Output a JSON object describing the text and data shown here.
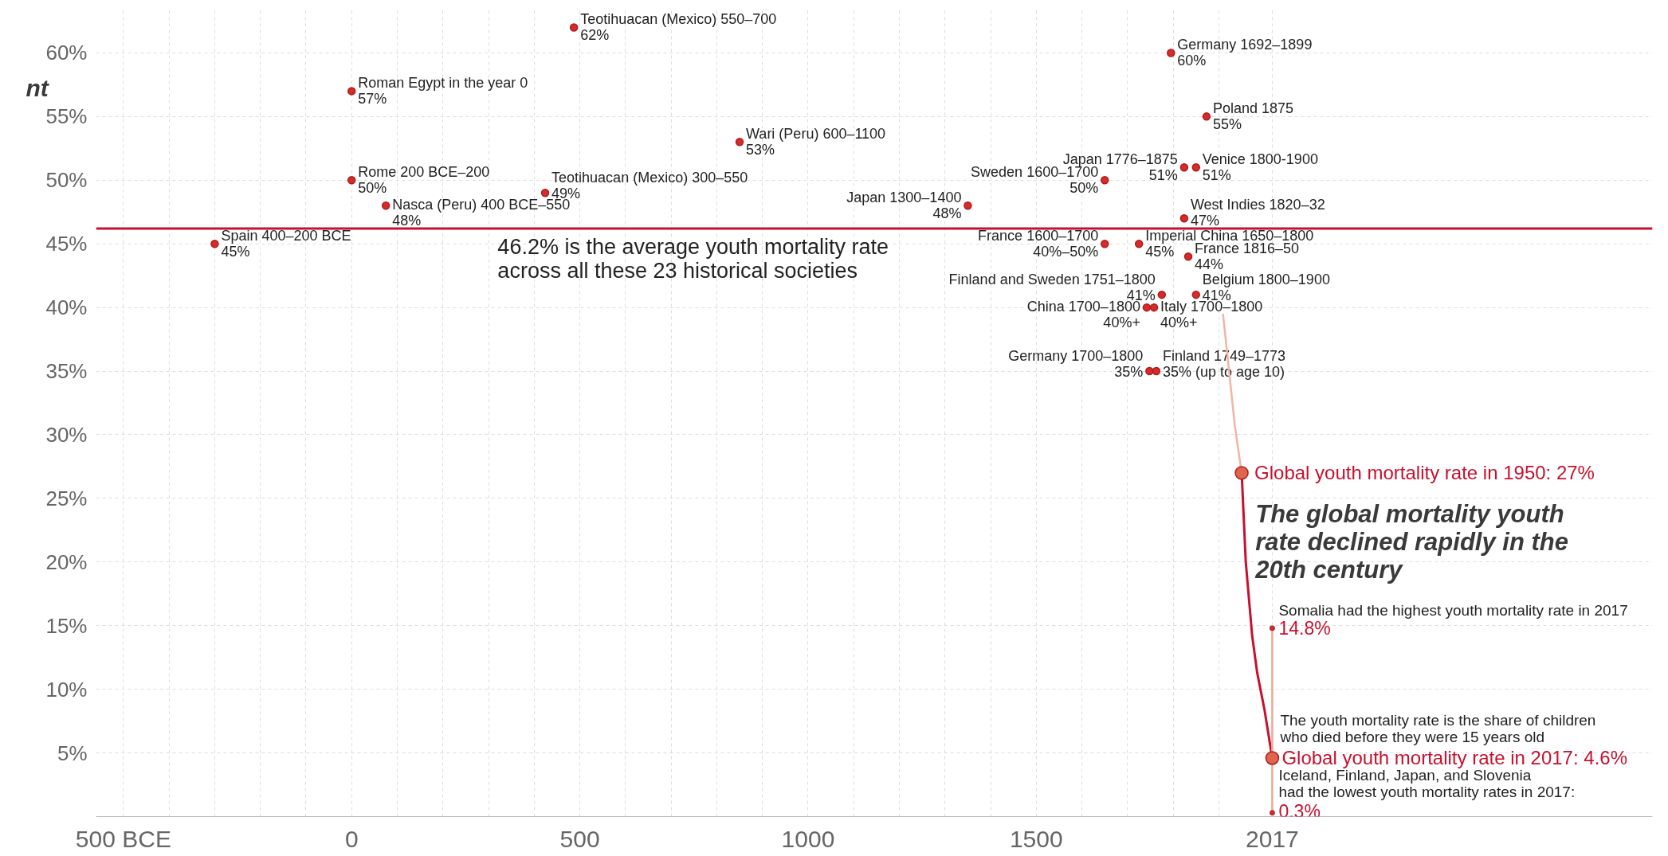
{
  "chart_data": {
    "type": "scatter",
    "line_style": "solid",
    "grid": true,
    "xlim": [
      -560,
      2850
    ],
    "ylim": [
      0,
      63.5
    ],
    "xticks": [
      {
        "value": -500,
        "label": "500 BCE"
      },
      {
        "value": -400,
        "label": null
      },
      {
        "value": -300,
        "label": null
      },
      {
        "value": -200,
        "label": null
      },
      {
        "value": -100,
        "label": null
      },
      0,
      {
        "value": 100,
        "label": null
      },
      {
        "value": 200,
        "label": null
      },
      {
        "value": 300,
        "label": null
      },
      {
        "value": 400,
        "label": null
      },
      500,
      {
        "value": 600,
        "label": null
      },
      {
        "value": 700,
        "label": null
      },
      {
        "value": 800,
        "label": null
      },
      {
        "value": 900,
        "label": null
      },
      1000,
      {
        "value": 1100,
        "label": null
      },
      {
        "value": 1200,
        "label": null
      },
      {
        "value": 1300,
        "label": null
      },
      {
        "value": 1400,
        "label": null
      },
      1500,
      {
        "value": 1600,
        "label": null
      },
      {
        "value": 1700,
        "label": null
      },
      {
        "value": 1800,
        "label": null
      },
      {
        "value": 1900,
        "label": null
      },
      2017
    ],
    "yticks": [
      {
        "value": 5,
        "label": "5%"
      },
      {
        "value": 10,
        "label": "10%"
      },
      {
        "value": 15,
        "label": "15%"
      },
      {
        "value": 20,
        "label": "20%"
      },
      {
        "value": 25,
        "label": "25%"
      },
      {
        "value": 30,
        "label": "30%"
      },
      {
        "value": 35,
        "label": "35%"
      },
      {
        "value": 40,
        "label": "40%"
      },
      {
        "value": 45,
        "label": "45%"
      },
      {
        "value": 50,
        "label": "50%"
      },
      {
        "value": 55,
        "label": "55%"
      },
      {
        "value": 60,
        "label": "60%"
      }
    ],
    "series": [
      {
        "marker": "circle",
        "color": "#d42b2b",
        "x": [
          -300,
          0,
          0,
          75,
          487,
          424,
          850,
          1350,
          1650,
          1650,
          1725,
          1795,
          1873,
          1824,
          1850,
          1824,
          1833,
          1775,
          1850,
          1742,
          1758,
          1748,
          1763
        ],
        "values": [
          45,
          57,
          50,
          48,
          62,
          49,
          53,
          48,
          50,
          45,
          45,
          60,
          55,
          51,
          51,
          47,
          44,
          41,
          41,
          40,
          40,
          35,
          35
        ],
        "value_labels": [
          "Spain 400–200 BCE\n45%",
          "Roman Egypt in the year 0\n57%",
          "Rome 200 BCE–200\n50%",
          "Nasca (Peru) 400 BCE–550\n48%",
          "Teotihuacan (Mexico) 550–700\n62%",
          "Teotihuacan (Mexico) 300–550\n49%",
          "Wari (Peru) 600–1100\n53%",
          "Japan 1300–1400\n48%",
          "Sweden 1600–1700\n50%",
          "France 1600–1700\n40%–50%",
          "Imperial China 1650–1800\n45%",
          "Germany 1692–1899\n60%",
          "Poland 1875\n55%",
          "Japan 1776–1875\n51%",
          "Venice 1800-1900\n51%",
          "West Indies 1820–32\n47%",
          "France 1816–50\n44%",
          "Finland and Sweden 1751–1800\n41%",
          "Belgium 1800–1900\n41%",
          "China 1700–1800\n40%+",
          "Italy 1700–1800\n40%+",
          "Germany 1700–1800\n35%",
          "Finland 1749–1773\n35% (up to age 10)"
        ]
      },
      {
        "type": "line",
        "color": "#f2b4a4",
        "x": [
          1909,
          1924,
          1935,
          1950
        ],
        "values": [
          39.5,
          34.5,
          30.7,
          27
        ]
      },
      {
        "type": "line",
        "color": "#c8102e",
        "x": [
          1950,
          1959,
          1973,
          1984,
          2000,
          2017
        ],
        "values": [
          27,
          20,
          14.2,
          11.3,
          8.4,
          4.6
        ]
      },
      {
        "type": "line",
        "marker": "circle",
        "color": "#eea898",
        "x": [
          2017,
          2017
        ],
        "values": [
          0.3,
          14.8
        ]
      },
      {
        "type": "scatter",
        "marker": "circle",
        "color": "#e0654f",
        "x": [
          1950,
          2017
        ],
        "values": [
          27,
          4.6
        ]
      }
    ],
    "ref_lines": [
      {
        "axis": "y",
        "value": 46.2,
        "color": "#c8102e",
        "label": "46.2% is the average youth mortality rate\nacross all these 23 historical societies"
      }
    ],
    "annotations": [
      "nt",
      {
        "text": "Global youth mortality rate in 1950: 27%",
        "x": 1950,
        "y": 27
      },
      {
        "text": "The global mortality youth\nrate  declined rapidly in the\n20th century",
        "x": 1959,
        "y": 20
      },
      {
        "text": "Somalia had the highest youth mortality rate in 2017",
        "x": 2017,
        "y": 14.8
      },
      {
        "text": "14.8%",
        "x": 2017,
        "y": 14.8
      },
      {
        "text": "The youth mortality rate is the share of children\nwho died before they were 15 years old",
        "x": 2017,
        "y": 4.6
      },
      {
        "text": "Global youth mortality rate in 2017: 4.6%",
        "x": 2017,
        "y": 4.6
      },
      {
        "text": "Iceland, Finland, Japan, and Slovenia\nhad the lowest youth mortality rates in 2017:",
        "x": 2017,
        "y": 0.3
      },
      {
        "text": "0.3%",
        "x": 2017,
        "y": 0.3
      }
    ]
  }
}
